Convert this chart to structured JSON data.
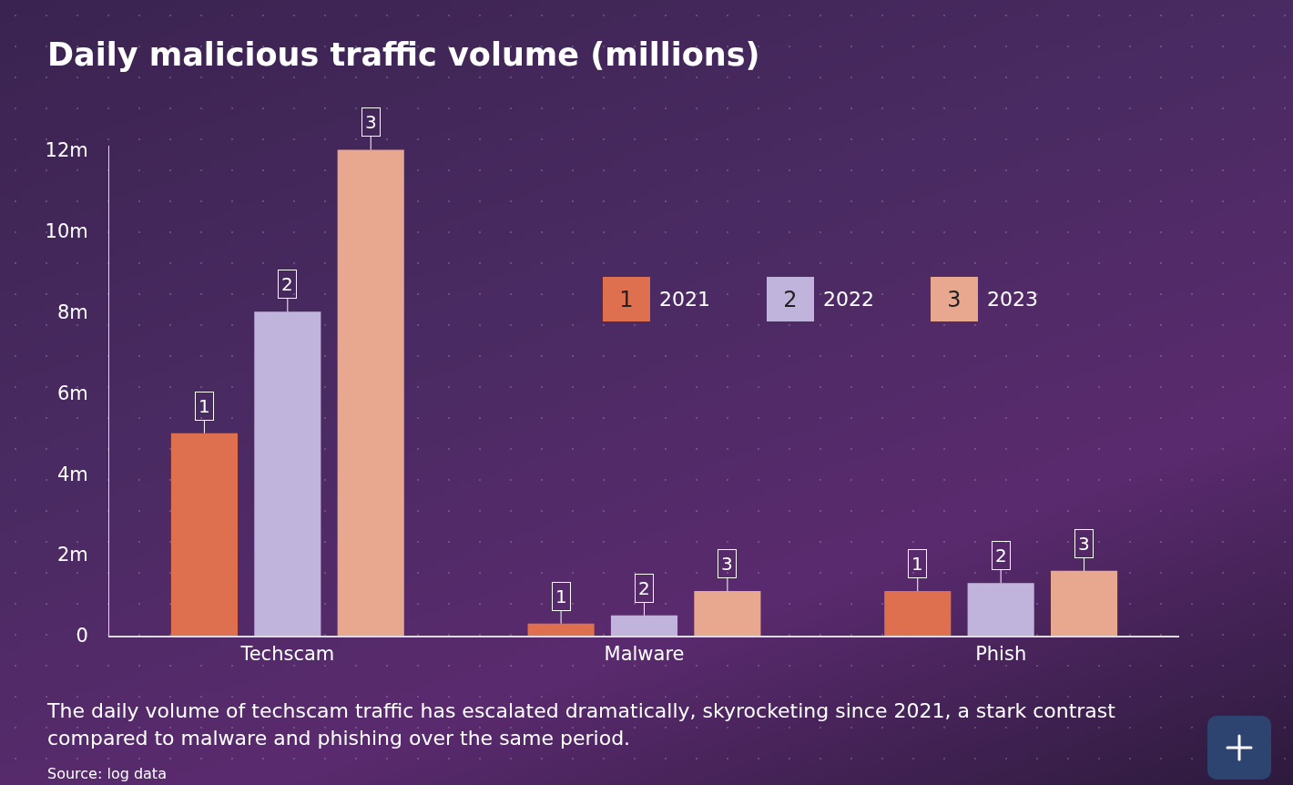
{
  "chart_data": {
    "type": "bar",
    "title": "Daily malicious traffic volume (millions)",
    "categories": [
      "Techscam",
      "Malware",
      "Phish"
    ],
    "series": [
      {
        "name": "2021",
        "color": "#de7050",
        "values": [
          5,
          0.3,
          1.1
        ]
      },
      {
        "name": "2022",
        "color": "#c0b4dc",
        "values": [
          8,
          0.5,
          1.3
        ]
      },
      {
        "name": "2023",
        "color": "#e8a890",
        "values": [
          12,
          1.1,
          1.6
        ]
      }
    ],
    "ylim": [
      0,
      12.1
    ],
    "yticks": [
      0,
      {
        "value": 2,
        "label": "2m"
      },
      {
        "value": 4,
        "label": "4m"
      },
      {
        "value": 6,
        "label": "6m"
      },
      {
        "value": 8,
        "label": "8m"
      },
      {
        "value": 10,
        "label": "10m"
      },
      {
        "value": 12,
        "label": "12m"
      }
    ],
    "grid": false,
    "legend": "right",
    "annotations": [
      "The daily volume of techscam traffic has escalated dramatically, skyrocketing since 2021, a stark contrast compared to malware and phishing over the same period.",
      "Source: log data",
      "1",
      "2",
      "3",
      "1",
      "2",
      "3",
      "1",
      "2",
      "3",
      "1",
      "2",
      "3"
    ]
  }
}
